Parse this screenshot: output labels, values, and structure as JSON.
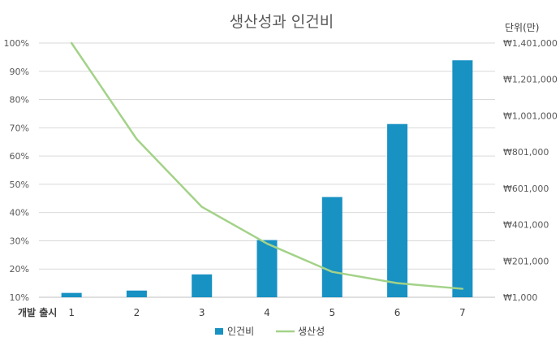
{
  "chart_data": {
    "type": "bar+line",
    "title": "생산성과 인건비",
    "xlabel": "개발 출시",
    "right_axis_unit": "단위(만)",
    "categories": [
      "1",
      "2",
      "3",
      "4",
      "5",
      "6",
      "7"
    ],
    "left_axis": {
      "ylim": [
        0.1,
        1.0
      ],
      "ticks": [
        "10%",
        "20%",
        "30%",
        "40%",
        "50%",
        "60%",
        "70%",
        "80%",
        "90%",
        "100%"
      ]
    },
    "right_axis": {
      "ylim": [
        1000,
        1401000
      ],
      "ticks": [
        "₩1,000",
        "₩201,000",
        "₩401,000",
        "₩601,000",
        "₩801,000",
        "₩1,001,000",
        "₩1,201,000",
        "₩1,401,000"
      ]
    },
    "series": [
      {
        "name": "인건비",
        "type": "bar",
        "axis": "right",
        "color": "#1891c3",
        "values": [
          25000,
          38000,
          127000,
          316000,
          553000,
          955000,
          1306000
        ]
      },
      {
        "name": "생산성",
        "type": "line",
        "axis": "left",
        "color": "#a3d288",
        "values": [
          1.0,
          0.66,
          0.42,
          0.29,
          0.19,
          0.15,
          0.13
        ]
      }
    ],
    "grid": true,
    "legend_position": "bottom"
  }
}
